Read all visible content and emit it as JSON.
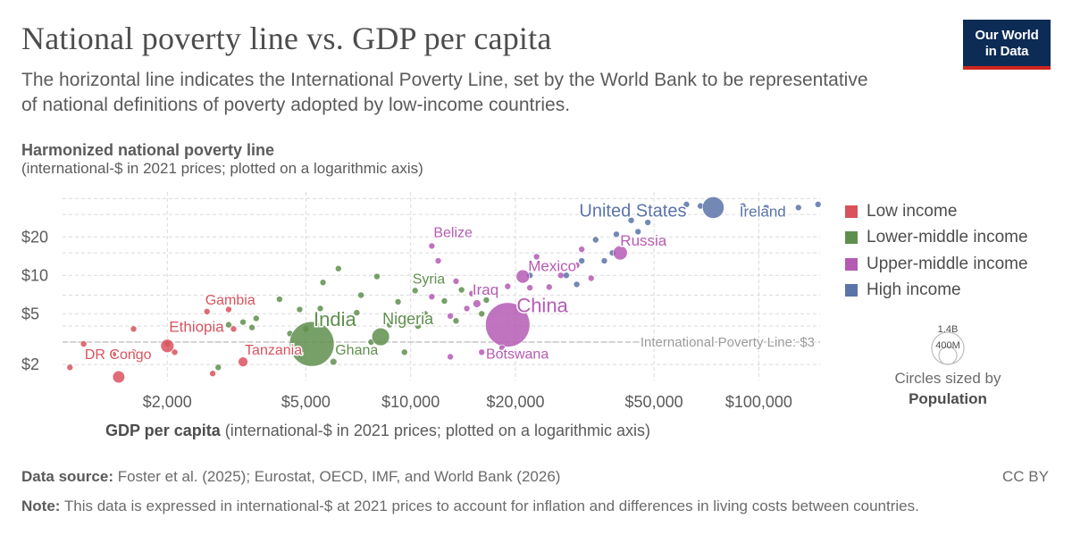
{
  "header": {
    "title": "National poverty line vs. GDP per capita",
    "subtitle": "The horizontal line indicates the International Poverty Line, set by the World Bank to be representative of national definitions of poverty adopted by low-income countries.",
    "logo_line1": "Our World",
    "logo_line2": "in Data"
  },
  "axes": {
    "y_title": "Harmonized national poverty line",
    "y_subtitle": "(international-$ in 2021 prices; plotted on a logarithmic axis)",
    "x_title": "GDP per capita",
    "x_subtitle": "(international-$ in 2021 prices; plotted on a logarithmic axis)"
  },
  "legend": {
    "items": [
      {
        "label": "Low income",
        "color": "#d9525e"
      },
      {
        "label": "Lower-middle income",
        "color": "#5f8f4e"
      },
      {
        "label": "Upper-middle income",
        "color": "#b55ab4"
      },
      {
        "label": "High income",
        "color": "#5a73a8"
      }
    ],
    "size_max": "1.4B",
    "size_mid": "400M",
    "size_note_prefix": "Circles sized by",
    "size_note_var": "Population"
  },
  "footer": {
    "source_label": "Data source:",
    "source_text": "Foster et al. (2025); Eurostat, OECD, IMF, and World Bank (2026)",
    "license": "CC BY",
    "note_label": "Note:",
    "note_text": "This data is expressed in international-$ at 2021 prices to account for inflation and differences in living costs between countries."
  },
  "chart_data": {
    "type": "scatter",
    "title": "National poverty line vs. GDP per capita",
    "xlabel": "GDP per capita (international-$ in 2021 prices; plotted on a logarithmic axis)",
    "ylabel": "Harmonized national poverty line (international-$ in 2021 prices; plotted on a logarithmic axis)",
    "xscale": "log",
    "yscale": "log",
    "xlim": [
      1000,
      150000
    ],
    "ylim": [
      1.5,
      45
    ],
    "xticks": [
      2000,
      5000,
      10000,
      20000,
      50000,
      100000
    ],
    "xtick_labels": [
      "$2,000",
      "$5,000",
      "$10,000",
      "$20,000",
      "$50,000",
      "$100,000"
    ],
    "yticks": [
      2,
      5,
      10,
      20
    ],
    "ytick_labels": [
      "$2",
      "$5",
      "$10",
      "$20"
    ],
    "reference_line": {
      "y": 3,
      "label": "International Poverty Line: $3"
    },
    "grid": true,
    "legend_position": "right",
    "colors": {
      "Low income": "#d9525e",
      "Lower-middle income": "#5f8f4e",
      "Upper-middle income": "#b55ab4",
      "High income": "#5a73a8"
    },
    "labeled_points": [
      {
        "country": "DR Congo",
        "group": "Low income",
        "x": 1450,
        "y": 1.6,
        "population_m": 105
      },
      {
        "country": "Ethiopia",
        "group": "Low income",
        "x": 2000,
        "y": 2.8,
        "population_m": 126
      },
      {
        "country": "Gambia",
        "group": "Low income",
        "x": 2600,
        "y": 5.2,
        "population_m": 2.7
      },
      {
        "country": "Tanzania",
        "group": "Low income",
        "x": 3300,
        "y": 2.1,
        "population_m": 67
      },
      {
        "country": "India",
        "group": "Lower-middle income",
        "x": 5200,
        "y": 2.9,
        "population_m": 1430
      },
      {
        "country": "Ghana",
        "group": "Lower-middle income",
        "x": 6000,
        "y": 2.1,
        "population_m": 34
      },
      {
        "country": "Nigeria",
        "group": "Lower-middle income",
        "x": 8200,
        "y": 3.3,
        "population_m": 224
      },
      {
        "country": "Syria",
        "group": "Lower-middle income",
        "x": 10300,
        "y": 7.6,
        "population_m": 23
      },
      {
        "country": "Belize",
        "group": "Upper-middle income",
        "x": 11500,
        "y": 17,
        "population_m": 0.4
      },
      {
        "country": "Iraq",
        "group": "Upper-middle income",
        "x": 15500,
        "y": 6,
        "population_m": 45
      },
      {
        "country": "China",
        "group": "Upper-middle income",
        "x": 19000,
        "y": 4.1,
        "population_m": 1410
      },
      {
        "country": "Botswana",
        "group": "Upper-middle income",
        "x": 18300,
        "y": 2.7,
        "population_m": 2.6
      },
      {
        "country": "Mexico",
        "group": "Upper-middle income",
        "x": 21000,
        "y": 9.8,
        "population_m": 128
      },
      {
        "country": "Russia",
        "group": "Upper-middle income",
        "x": 40000,
        "y": 15,
        "population_m": 144
      },
      {
        "country": "United States",
        "group": "High income",
        "x": 74000,
        "y": 34,
        "population_m": 335
      },
      {
        "country": "Ireland",
        "group": "High income",
        "x": 130000,
        "y": 34,
        "population_m": 5.3
      }
    ]
  }
}
